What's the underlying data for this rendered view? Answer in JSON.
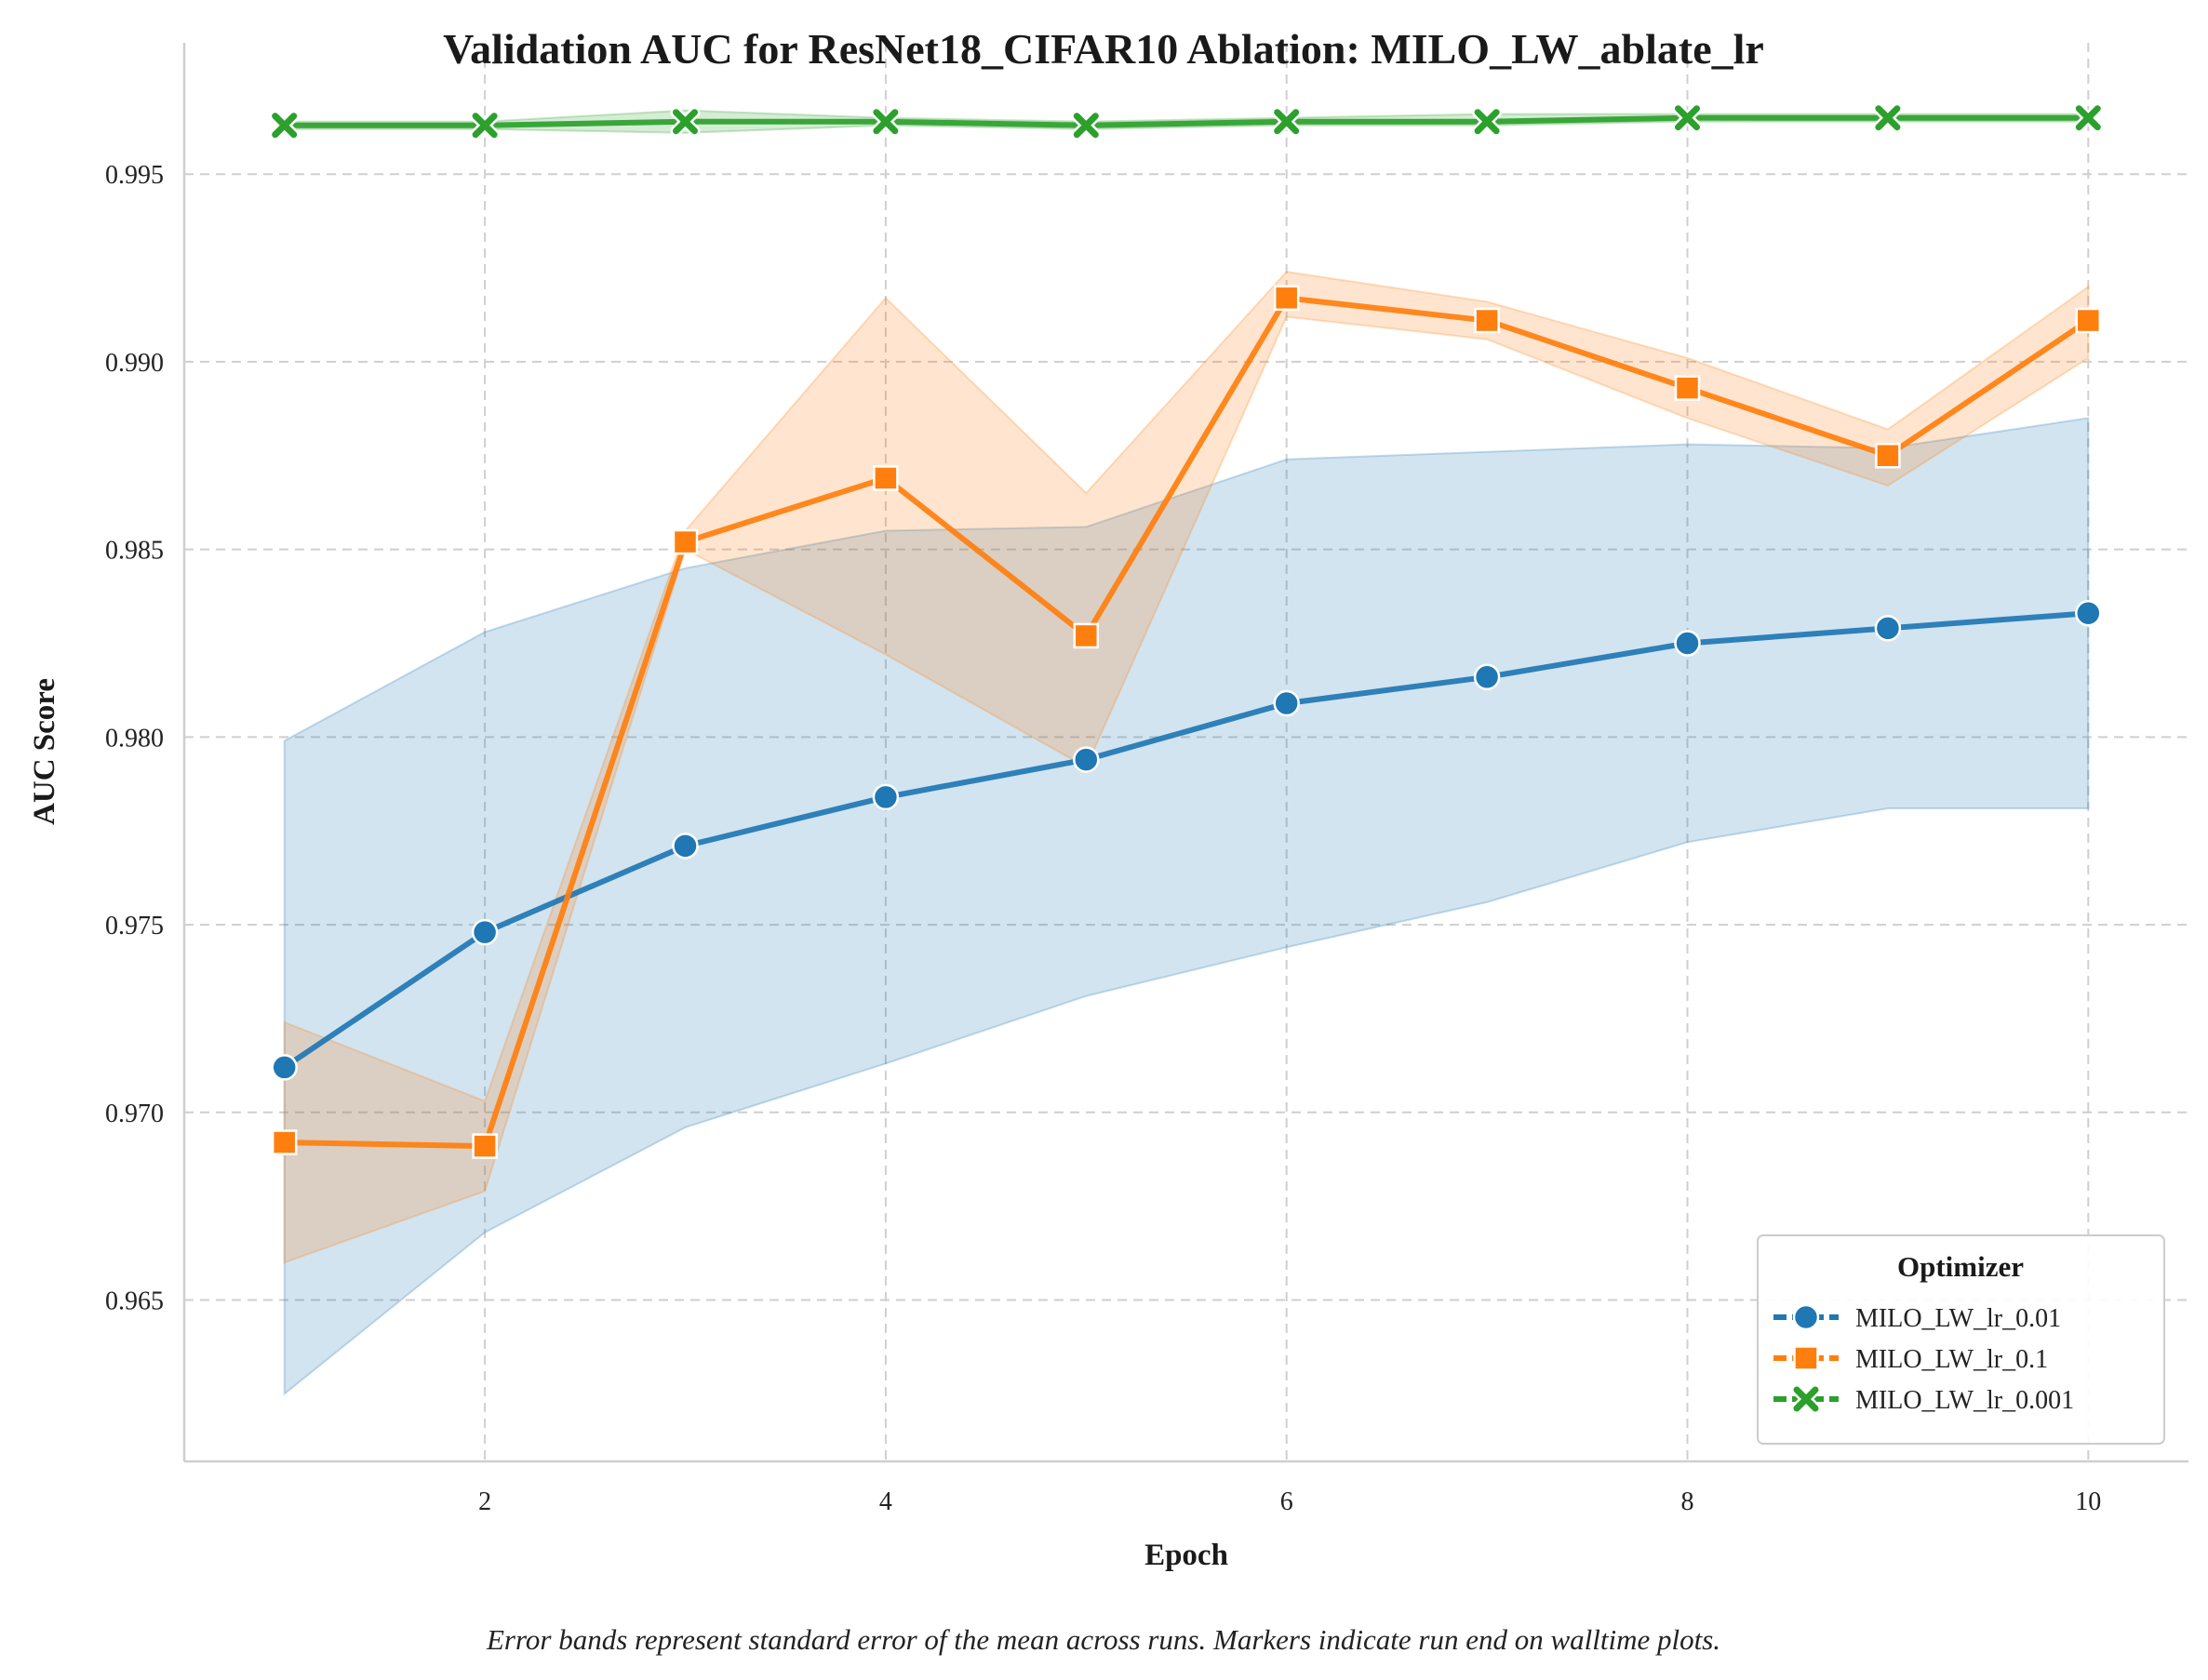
{
  "chart_data": {
    "type": "line",
    "title": "Validation AUC for ResNet18_CIFAR10 Ablation: MILO_LW_ablate_lr",
    "xlabel": "Epoch",
    "ylabel": "AUC Score",
    "xlim": [
      0.5,
      10.5
    ],
    "ylim": [
      0.9607,
      0.9985
    ],
    "x_ticks": [
      2,
      4,
      6,
      8,
      10
    ],
    "x_tick_labels": [
      "2",
      "4",
      "6",
      "8",
      "10"
    ],
    "y_ticks": [
      0.965,
      0.97,
      0.975,
      0.98,
      0.985,
      0.99,
      0.995
    ],
    "y_tick_labels": [
      "0.965",
      "0.970",
      "0.975",
      "0.980",
      "0.985",
      "0.990",
      "0.995"
    ],
    "grid": true,
    "legend": {
      "title": "Optimizer",
      "placement": "bottom-right"
    },
    "x": [
      1,
      2,
      3,
      4,
      5,
      6,
      7,
      8,
      9,
      10
    ],
    "series": [
      {
        "name": "MILO_LW_lr_0.01",
        "color": "#1f77b4",
        "marker": "circle",
        "values": [
          0.9712,
          0.9748,
          0.9771,
          0.9784,
          0.9794,
          0.9809,
          0.9816,
          0.9825,
          0.9829,
          0.9833
        ],
        "lower": [
          0.9625,
          0.9668,
          0.9696,
          0.9713,
          0.9731,
          0.9744,
          0.9756,
          0.9772,
          0.9781,
          0.9781
        ],
        "upper": [
          0.9799,
          0.9828,
          0.9845,
          0.9855,
          0.9856,
          0.9874,
          0.9876,
          0.9878,
          0.9877,
          0.9885
        ]
      },
      {
        "name": "MILO_LW_lr_0.1",
        "color": "#ff7f0e",
        "marker": "square",
        "values": [
          0.9692,
          0.9691,
          0.9852,
          0.9869,
          0.9827,
          0.9917,
          0.9911,
          0.9893,
          0.9875,
          0.9911
        ],
        "lower": [
          0.966,
          0.9679,
          0.985,
          0.9822,
          0.9792,
          0.9912,
          0.9906,
          0.9885,
          0.9867,
          0.9901
        ],
        "upper": [
          0.9724,
          0.9703,
          0.9855,
          0.9917,
          0.9865,
          0.9924,
          0.9916,
          0.9901,
          0.9882,
          0.992
        ]
      },
      {
        "name": "MILO_LW_lr_0.001",
        "color": "#2ca02c",
        "marker": "x",
        "values": [
          0.9963,
          0.9963,
          0.9964,
          0.9964,
          0.9963,
          0.9964,
          0.9964,
          0.9965,
          0.9965,
          0.9965
        ],
        "lower": [
          0.9962,
          0.9962,
          0.9961,
          0.9963,
          0.9962,
          0.9963,
          0.9963,
          0.9964,
          0.9964,
          0.9964
        ],
        "upper": [
          0.9964,
          0.9964,
          0.9967,
          0.9965,
          0.9964,
          0.9965,
          0.9966,
          0.9966,
          0.9966,
          0.9966
        ]
      }
    ],
    "caption": "Error bands represent standard error of the mean across runs. Markers indicate run end on walltime plots."
  }
}
